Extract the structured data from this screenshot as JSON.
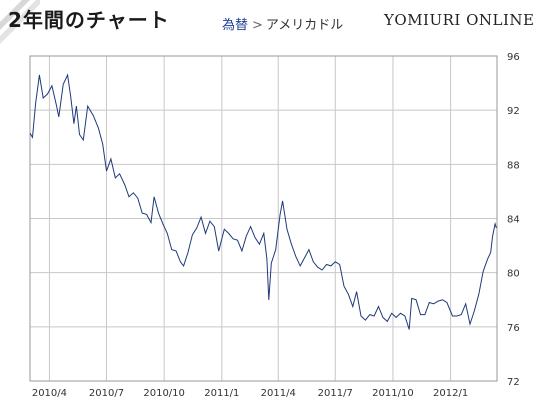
{
  "header": {
    "title": "2年間のチャート",
    "breadcrumb_link": "為替",
    "breadcrumb_sep": ">",
    "breadcrumb_current": "アメリカドル",
    "brand": "YOMIURI ONLINE"
  },
  "colors": {
    "line": "#1f3a7a",
    "grid": "#c8c8c8",
    "stripe": "#d5d5d5",
    "link": "#1f3f9a"
  },
  "chart_data": {
    "type": "line",
    "title": "",
    "xlabel": "",
    "ylabel": "",
    "ylim": [
      72,
      96
    ],
    "yticks": [
      72,
      76,
      80,
      84,
      88,
      92,
      96
    ],
    "x_range": [
      "2010-03-01",
      "2012-03-15"
    ],
    "xticks": [
      {
        "date": "2010-04-01",
        "label": "2010/4"
      },
      {
        "date": "2010-07-01",
        "label": "2010/7"
      },
      {
        "date": "2010-10-01",
        "label": "2010/10"
      },
      {
        "date": "2011-01-01",
        "label": "2011/1"
      },
      {
        "date": "2011-04-01",
        "label": "2011/4"
      },
      {
        "date": "2011-07-01",
        "label": "2011/7"
      },
      {
        "date": "2011-10-01",
        "label": "2011/10"
      },
      {
        "date": "2012-01-01",
        "label": "2012/1"
      }
    ],
    "grid": true,
    "series": [
      {
        "points": [
          [
            "2010-03-01",
            90.3
          ],
          [
            "2010-03-05",
            90.0
          ],
          [
            "2010-03-10",
            92.5
          ],
          [
            "2010-03-16",
            94.6
          ],
          [
            "2010-03-22",
            92.9
          ],
          [
            "2010-03-29",
            93.2
          ],
          [
            "2010-04-05",
            93.8
          ],
          [
            "2010-04-12",
            92.4
          ],
          [
            "2010-04-16",
            91.5
          ],
          [
            "2010-04-23",
            93.9
          ],
          [
            "2010-04-30",
            94.6
          ],
          [
            "2010-05-05",
            93.0
          ],
          [
            "2010-05-10",
            91.0
          ],
          [
            "2010-05-14",
            92.3
          ],
          [
            "2010-05-19",
            90.2
          ],
          [
            "2010-05-25",
            89.8
          ],
          [
            "2010-06-01",
            92.3
          ],
          [
            "2010-06-10",
            91.6
          ],
          [
            "2010-06-18",
            90.7
          ],
          [
            "2010-06-25",
            89.5
          ],
          [
            "2010-07-01",
            87.5
          ],
          [
            "2010-07-08",
            88.4
          ],
          [
            "2010-07-15",
            87.0
          ],
          [
            "2010-07-22",
            87.3
          ],
          [
            "2010-07-30",
            86.5
          ],
          [
            "2010-08-06",
            85.6
          ],
          [
            "2010-08-13",
            85.9
          ],
          [
            "2010-08-20",
            85.5
          ],
          [
            "2010-08-27",
            84.4
          ],
          [
            "2010-09-03",
            84.3
          ],
          [
            "2010-09-10",
            83.7
          ],
          [
            "2010-09-15",
            85.6
          ],
          [
            "2010-09-22",
            84.4
          ],
          [
            "2010-09-29",
            83.6
          ],
          [
            "2010-10-06",
            82.9
          ],
          [
            "2010-10-13",
            81.7
          ],
          [
            "2010-10-20",
            81.6
          ],
          [
            "2010-10-27",
            80.8
          ],
          [
            "2010-11-01",
            80.5
          ],
          [
            "2010-11-08",
            81.5
          ],
          [
            "2010-11-15",
            82.8
          ],
          [
            "2010-11-22",
            83.3
          ],
          [
            "2010-11-29",
            84.1
          ],
          [
            "2010-12-06",
            82.9
          ],
          [
            "2010-12-13",
            83.8
          ],
          [
            "2010-12-20",
            83.4
          ],
          [
            "2010-12-27",
            81.6
          ],
          [
            "2011-01-05",
            83.2
          ],
          [
            "2011-01-12",
            82.9
          ],
          [
            "2011-01-19",
            82.5
          ],
          [
            "2011-01-26",
            82.4
          ],
          [
            "2011-02-02",
            81.6
          ],
          [
            "2011-02-09",
            82.7
          ],
          [
            "2011-02-16",
            83.4
          ],
          [
            "2011-02-23",
            82.6
          ],
          [
            "2011-03-02",
            82.1
          ],
          [
            "2011-03-09",
            82.9
          ],
          [
            "2011-03-14",
            81.0
          ],
          [
            "2011-03-17",
            78.0
          ],
          [
            "2011-03-21",
            80.7
          ],
          [
            "2011-03-28",
            81.7
          ],
          [
            "2011-04-04",
            84.3
          ],
          [
            "2011-04-08",
            85.3
          ],
          [
            "2011-04-15",
            83.2
          ],
          [
            "2011-04-22",
            82.1
          ],
          [
            "2011-04-29",
            81.2
          ],
          [
            "2011-05-06",
            80.5
          ],
          [
            "2011-05-13",
            81.1
          ],
          [
            "2011-05-20",
            81.7
          ],
          [
            "2011-05-27",
            80.8
          ],
          [
            "2011-06-03",
            80.4
          ],
          [
            "2011-06-10",
            80.2
          ],
          [
            "2011-06-17",
            80.6
          ],
          [
            "2011-06-24",
            80.5
          ],
          [
            "2011-07-01",
            80.8
          ],
          [
            "2011-07-08",
            80.6
          ],
          [
            "2011-07-15",
            79.0
          ],
          [
            "2011-07-22",
            78.4
          ],
          [
            "2011-07-29",
            77.5
          ],
          [
            "2011-08-04",
            78.6
          ],
          [
            "2011-08-11",
            76.8
          ],
          [
            "2011-08-18",
            76.5
          ],
          [
            "2011-08-25",
            76.9
          ],
          [
            "2011-09-01",
            76.8
          ],
          [
            "2011-09-08",
            77.5
          ],
          [
            "2011-09-15",
            76.7
          ],
          [
            "2011-09-22",
            76.4
          ],
          [
            "2011-09-29",
            77.0
          ],
          [
            "2011-10-06",
            76.7
          ],
          [
            "2011-10-13",
            77.0
          ],
          [
            "2011-10-20",
            76.8
          ],
          [
            "2011-10-27",
            75.8
          ],
          [
            "2011-10-31",
            78.1
          ],
          [
            "2011-11-07",
            78.0
          ],
          [
            "2011-11-14",
            76.9
          ],
          [
            "2011-11-21",
            76.9
          ],
          [
            "2011-11-28",
            77.8
          ],
          [
            "2011-12-05",
            77.7
          ],
          [
            "2011-12-12",
            77.9
          ],
          [
            "2011-12-19",
            78.0
          ],
          [
            "2011-12-26",
            77.8
          ],
          [
            "2012-01-04",
            76.8
          ],
          [
            "2012-01-11",
            76.8
          ],
          [
            "2012-01-18",
            76.9
          ],
          [
            "2012-01-25",
            77.7
          ],
          [
            "2012-02-01",
            76.2
          ],
          [
            "2012-02-08",
            77.2
          ],
          [
            "2012-02-15",
            78.4
          ],
          [
            "2012-02-22",
            80.1
          ],
          [
            "2012-02-29",
            81.0
          ],
          [
            "2012-03-05",
            81.5
          ],
          [
            "2012-03-08",
            82.7
          ],
          [
            "2012-03-12",
            83.6
          ],
          [
            "2012-03-14",
            83.3
          ]
        ]
      }
    ]
  }
}
